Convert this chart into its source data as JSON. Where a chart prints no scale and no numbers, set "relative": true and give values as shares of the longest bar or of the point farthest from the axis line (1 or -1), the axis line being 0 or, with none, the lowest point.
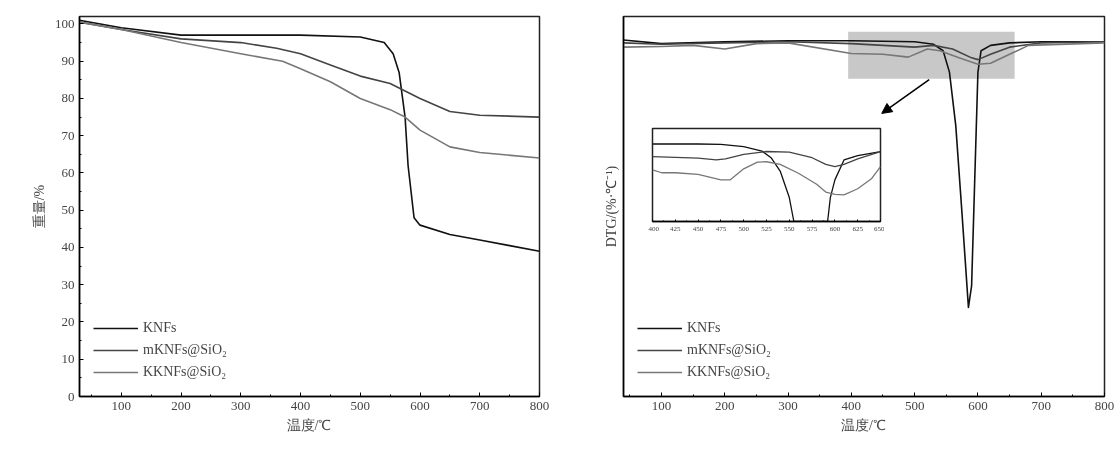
{
  "chart_data": [
    {
      "type": "line",
      "xlabel": "温度/℃",
      "ylabel": "重量/%",
      "xlim": [
        30,
        800
      ],
      "ylim": [
        0,
        102
      ],
      "xticks": [
        100,
        200,
        300,
        400,
        500,
        600,
        700,
        800
      ],
      "yticks": [
        0,
        10,
        20,
        30,
        40,
        50,
        60,
        70,
        80,
        90,
        100
      ],
      "legend": "bottom left",
      "series": [
        {
          "name": "KNFs",
          "color": "#111111",
          "x": [
            30,
            100,
            200,
            300,
            400,
            500,
            540,
            555,
            565,
            575,
            580,
            590,
            600,
            650,
            700,
            750,
            800
          ],
          "values": [
            101,
            99,
            97,
            97,
            97,
            96.5,
            95,
            92,
            87,
            75,
            62,
            48,
            46,
            43.5,
            42,
            40.5,
            39
          ]
        },
        {
          "name": "mKNFs@SiO₂",
          "color": "#444444",
          "x": [
            30,
            100,
            200,
            300,
            360,
            400,
            450,
            500,
            550,
            600,
            650,
            700,
            800
          ],
          "values": [
            100.5,
            98.5,
            96,
            95,
            93.5,
            92,
            89,
            86,
            84,
            80,
            76.5,
            75.5,
            75
          ]
        },
        {
          "name": "KKNFs@SiO₂",
          "color": "#777777",
          "x": [
            30,
            100,
            200,
            300,
            370,
            400,
            450,
            500,
            550,
            575,
            600,
            650,
            700,
            800
          ],
          "values": [
            100.5,
            98.5,
            95,
            92,
            90,
            88,
            84.5,
            80,
            77,
            75,
            71.5,
            67,
            65.5,
            64
          ]
        }
      ]
    },
    {
      "type": "line",
      "relative": true,
      "xlabel": "温度/℃",
      "ylabel": "DTG/(%·℃⁻¹)",
      "xlim": [
        40,
        800
      ],
      "xticks": [
        100,
        200,
        300,
        400,
        500,
        600,
        700,
        800
      ],
      "legend": "bottom left",
      "bands": [
        {
          "axis": "x",
          "from": 395,
          "to": 658,
          "color": "#c8c8c8"
        }
      ],
      "series": [
        {
          "name": "KNFs",
          "color": "#111111",
          "x": [
            40,
            100,
            200,
            300,
            400,
            500,
            530,
            545,
            555,
            565,
            575,
            585,
            590,
            595,
            600,
            605,
            620,
            650,
            700,
            800
          ],
          "values": [
            1.0,
            0.99,
            0.995,
            0.998,
            0.998,
            0.995,
            0.988,
            0.97,
            0.91,
            0.76,
            0.51,
            0.25,
            0.31,
            0.61,
            0.91,
            0.97,
            0.985,
            0.992,
            0.995,
            0.995
          ]
        },
        {
          "name": "mKNFs@SiO₂",
          "color": "#444444",
          "x": [
            40,
            100,
            200,
            300,
            400,
            450,
            500,
            530,
            560,
            590,
            600,
            620,
            650,
            700,
            800
          ],
          "values": [
            0.992,
            0.988,
            0.992,
            0.995,
            0.99,
            0.985,
            0.98,
            0.985,
            0.975,
            0.95,
            0.945,
            0.96,
            0.98,
            0.992,
            0.995
          ]
        },
        {
          "name": "KKNFs@SiO₂",
          "color": "#777777",
          "x": [
            40,
            100,
            150,
            200,
            250,
            300,
            400,
            450,
            490,
            520,
            540,
            570,
            600,
            620,
            650,
            680,
            800
          ],
          "values": [
            0.98,
            0.982,
            0.985,
            0.975,
            0.99,
            0.992,
            0.962,
            0.96,
            0.952,
            0.975,
            0.97,
            0.95,
            0.932,
            0.935,
            0.96,
            0.985,
            0.992
          ]
        }
      ]
    },
    {
      "type": "line",
      "relative": true,
      "xlim": [
        400,
        650
      ],
      "xticks": [
        400,
        425,
        450,
        475,
        500,
        525,
        550,
        575,
        600,
        625,
        650
      ],
      "tick_labels": "x",
      "series": [
        {
          "color": "#111111",
          "x": [
            400,
            425,
            450,
            475,
            500,
            520,
            530,
            540,
            550,
            555,
            592,
            595,
            600,
            610,
            625,
            650
          ],
          "values": [
            1.0,
            1.0,
            1.0,
            0.994,
            0.966,
            0.909,
            0.823,
            0.651,
            0.309,
            0,
            0,
            0.309,
            0.537,
            0.794,
            0.851,
            0.903
          ]
        },
        {
          "color": "#444444",
          "x": [
            400,
            450,
            470,
            480,
            500,
            525,
            550,
            575,
            590,
            600,
            610,
            625,
            650
          ],
          "values": [
            0.837,
            0.817,
            0.794,
            0.809,
            0.866,
            0.903,
            0.894,
            0.823,
            0.737,
            0.709,
            0.737,
            0.809,
            0.903
          ]
        },
        {
          "color": "#777777",
          "x": [
            400,
            410,
            425,
            450,
            475,
            485,
            500,
            515,
            525,
            540,
            560,
            580,
            590,
            600,
            610,
            625,
            640,
            650
          ],
          "values": [
            0.666,
            0.629,
            0.629,
            0.609,
            0.537,
            0.537,
            0.68,
            0.766,
            0.771,
            0.737,
            0.623,
            0.48,
            0.38,
            0.351,
            0.343,
            0.423,
            0.551,
            0.709
          ]
        }
      ]
    }
  ]
}
